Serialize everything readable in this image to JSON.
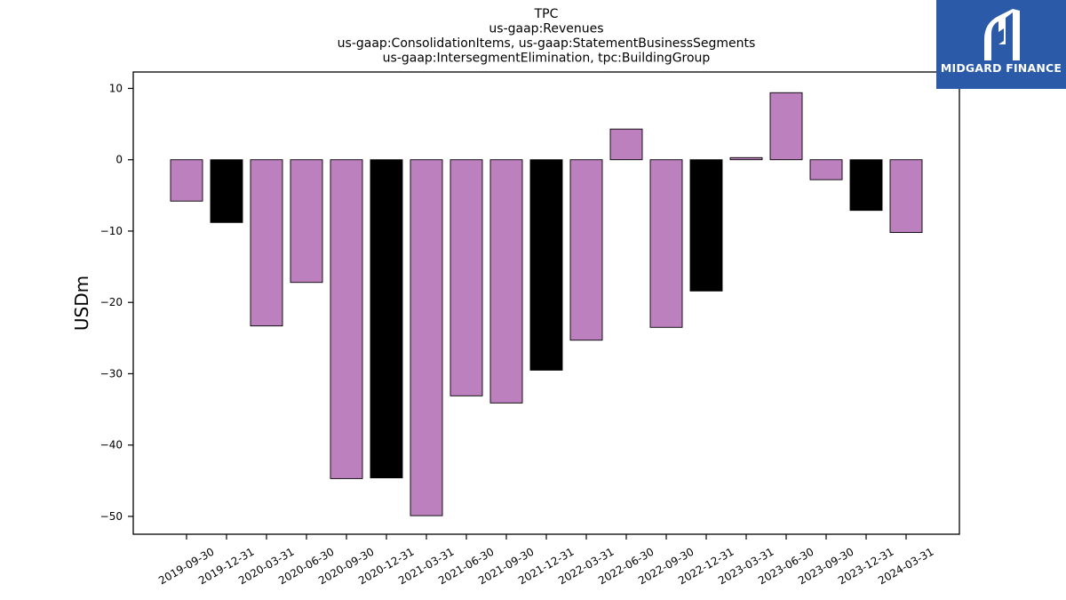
{
  "chart_data": {
    "type": "bar",
    "title_lines": [
      "TPC",
      "us-gaap:Revenues",
      "us-gaap:ConsolidationItems, us-gaap:StatementBusinessSegments",
      "us-gaap:IntersegmentElimination, tpc:BuildingGroup"
    ],
    "xlabel": "",
    "ylabel": "USDm",
    "ylim": [
      -52.5,
      12.3
    ],
    "yticks": [
      10,
      0,
      -10,
      -20,
      -30,
      -40,
      -50
    ],
    "ytick_labels": [
      "10",
      "0",
      "−10",
      "−20",
      "−30",
      "−40",
      "−50"
    ],
    "categories": [
      "2019-09-30",
      "2019-12-31",
      "2020-03-31",
      "2020-06-30",
      "2020-09-30",
      "2020-12-31",
      "2021-03-31",
      "2021-06-30",
      "2021-09-30",
      "2021-12-31",
      "2022-03-31",
      "2022-06-30",
      "2022-09-30",
      "2022-12-31",
      "2023-03-31",
      "2023-06-30",
      "2023-09-30",
      "2023-12-31",
      "2024-03-31"
    ],
    "values": [
      -5.8,
      -8.8,
      -23.3,
      -17.2,
      -44.7,
      -44.6,
      -49.9,
      -33.1,
      -34.1,
      -29.5,
      -25.3,
      4.3,
      -23.5,
      -18.4,
      0.3,
      9.4,
      -2.8,
      -7.1,
      -10.2
    ],
    "colors": [
      "#bb80bd",
      "#000000",
      "#bb80bd",
      "#bb80bd",
      "#bb80bd",
      "#000000",
      "#bb80bd",
      "#bb80bd",
      "#bb80bd",
      "#000000",
      "#bb80bd",
      "#bb80bd",
      "#bb80bd",
      "#000000",
      "#bb80bd",
      "#bb80bd",
      "#bb80bd",
      "#000000",
      "#bb80bd"
    ],
    "grid": false
  },
  "logo": {
    "text": "MIDGARD FINANCE",
    "background": "#2b5ba8",
    "icon": "midgard-logo-mark"
  }
}
